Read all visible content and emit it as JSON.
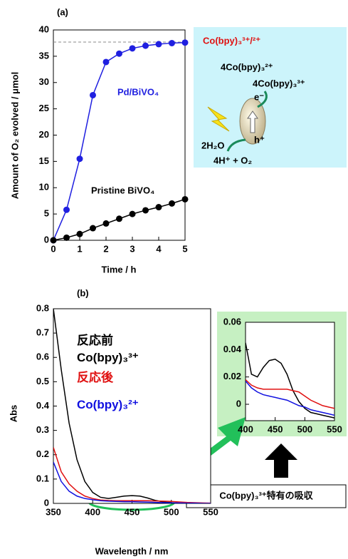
{
  "chart_data": [
    {
      "type": "line",
      "panel": "(a)",
      "xlabel": "Time / h",
      "ylabel": "Amount of O₂ evolved / μmol",
      "x": [
        0,
        0.5,
        1,
        1.5,
        2,
        2.5,
        3,
        3.5,
        4,
        4.5,
        5
      ],
      "series": [
        {
          "name": "Pd/BiVO₄",
          "color": "#1f1fe0",
          "marker": "circle",
          "values": [
            0,
            5.8,
            15.5,
            27.6,
            33.9,
            35.5,
            36.5,
            37,
            37.3,
            37.5,
            37.6
          ]
        },
        {
          "name": "Pristine BiVO₄",
          "color": "#000000",
          "marker": "circle",
          "values": [
            0,
            0.5,
            1.2,
            2.3,
            3.2,
            4.1,
            5,
            5.7,
            6.3,
            7,
            7.8
          ]
        }
      ],
      "hline": 37.7,
      "xlim": [
        0,
        5
      ],
      "ylim": [
        0,
        40
      ],
      "xticks": [
        0,
        1,
        2,
        3,
        4,
        5
      ],
      "yticks": [
        0,
        5,
        10,
        15,
        20,
        25,
        30,
        35,
        40
      ],
      "annotations": [
        "Co(bpy)₃³⁺/²⁺",
        "4Co(bpy)₃²⁺",
        "4Co(bpy)₃³⁺",
        "e⁻",
        "h⁺",
        "2H₂O",
        "4H⁺ + O₂"
      ]
    },
    {
      "type": "line",
      "panel": "(b)",
      "xlabel": "Wavelength / nm",
      "ylabel": "Abs",
      "x": [
        350,
        360,
        370,
        380,
        390,
        400,
        410,
        420,
        430,
        440,
        450,
        460,
        470,
        480,
        490,
        500,
        510,
        520,
        530,
        540,
        550
      ],
      "series": [
        {
          "name": "反応前\nCo(bpy)₃³⁺",
          "color": "#000000",
          "values": [
            0.8,
            0.55,
            0.33,
            0.18,
            0.09,
            0.045,
            0.025,
            0.02,
            0.025,
            0.03,
            0.032,
            0.03,
            0.022,
            0.012,
            0.006,
            0.003,
            0.001,
            0,
            0,
            0,
            0
          ]
        },
        {
          "name": "反応後",
          "color": "#e01010",
          "values": [
            0.23,
            0.13,
            0.08,
            0.05,
            0.03,
            0.02,
            0.014,
            0.012,
            0.011,
            0.011,
            0.011,
            0.011,
            0.011,
            0.01,
            0.009,
            0.008,
            0.006,
            0.004,
            0.003,
            0.002,
            0.001
          ]
        },
        {
          "name": "Co(bpy)₃²⁺",
          "color": "#1010e0",
          "values": [
            0.17,
            0.09,
            0.05,
            0.03,
            0.02,
            0.015,
            0.011,
            0.009,
            0.008,
            0.007,
            0.007,
            0.006,
            0.005,
            0.004,
            0.003,
            0.002,
            0.002,
            0.001,
            0.001,
            0,
            0
          ]
        }
      ],
      "xlim": [
        350,
        550
      ],
      "ylim": [
        0,
        0.8
      ],
      "xticks": [
        350,
        400,
        450,
        500,
        550
      ],
      "yticks": [
        0,
        0.1,
        0.2,
        0.3,
        0.4,
        0.5,
        0.6,
        0.7,
        0.8
      ],
      "annotations": [
        "Co(bpy)₃³⁺特有の吸収"
      ]
    },
    {
      "type": "line",
      "x": [
        400,
        410,
        420,
        430,
        440,
        450,
        460,
        470,
        480,
        490,
        500,
        510,
        520,
        530,
        540,
        550
      ],
      "series": [
        {
          "color": "#000000",
          "values": [
            0.045,
            0.022,
            0.02,
            0.027,
            0.032,
            0.033,
            0.03,
            0.022,
            0.01,
            0.002,
            -0.003,
            -0.006,
            -0.007,
            -0.008,
            -0.009,
            -0.01
          ]
        },
        {
          "color": "#e01010",
          "values": [
            0.018,
            0.014,
            0.012,
            0.011,
            0.011,
            0.011,
            0.011,
            0.011,
            0.01,
            0.009,
            0.006,
            0.003,
            0.001,
            -0.001,
            -0.002,
            -0.003
          ]
        },
        {
          "color": "#1010e0",
          "values": [
            0.017,
            0.012,
            0.009,
            0.007,
            0.006,
            0.005,
            0.004,
            0.003,
            0.001,
            -0.001,
            -0.002,
            -0.004,
            -0.005,
            -0.006,
            -0.007,
            -0.008
          ]
        }
      ],
      "xlim": [
        400,
        550
      ],
      "ylim": [
        -0.012,
        0.06
      ],
      "xticks": [
        400,
        450,
        500,
        550
      ],
      "yticks": [
        0,
        0.02,
        0.04,
        0.06
      ]
    }
  ]
}
